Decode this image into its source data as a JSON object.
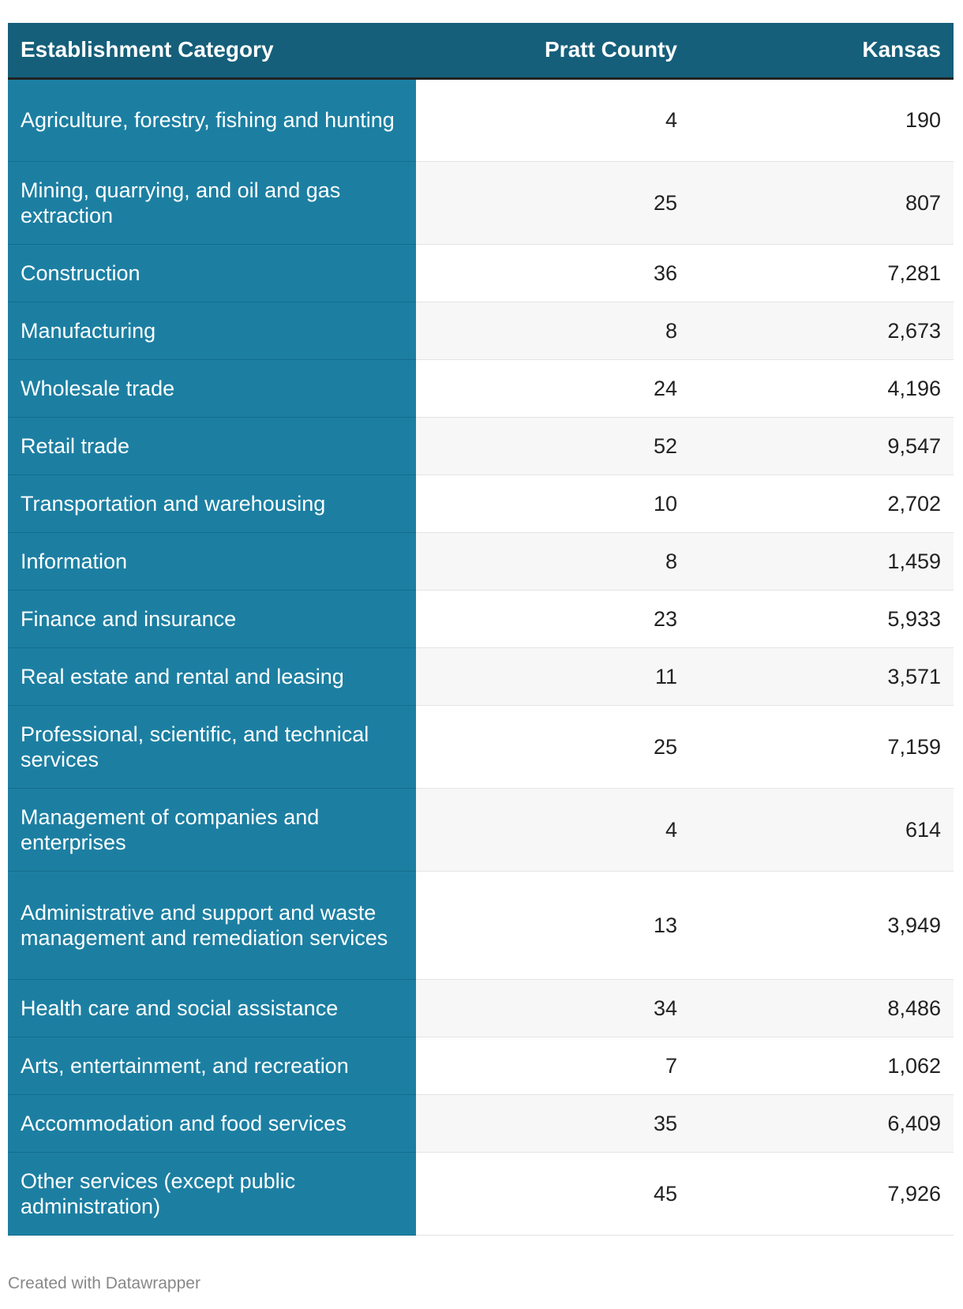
{
  "colors": {
    "header_bg": "#155f7a",
    "category_bg": "#1c7fa2",
    "header_text": "#ffffff",
    "body_text": "#222222"
  },
  "footer": "Created with Datawrapper",
  "chart_data": {
    "type": "table",
    "columns": [
      "Establishment Category",
      "Pratt County",
      "Kansas"
    ],
    "rows": [
      {
        "category": "Agriculture, forestry, fishing and hunting",
        "pratt": "4",
        "kansas": "190"
      },
      {
        "category": "Mining, quarrying, and oil and gas extraction",
        "pratt": "25",
        "kansas": "807"
      },
      {
        "category": "Construction",
        "pratt": "36",
        "kansas": "7,281"
      },
      {
        "category": "Manufacturing",
        "pratt": "8",
        "kansas": "2,673"
      },
      {
        "category": "Wholesale trade",
        "pratt": "24",
        "kansas": "4,196"
      },
      {
        "category": "Retail trade",
        "pratt": "52",
        "kansas": "9,547"
      },
      {
        "category": "Transportation and warehousing",
        "pratt": "10",
        "kansas": "2,702"
      },
      {
        "category": "Information",
        "pratt": "8",
        "kansas": "1,459"
      },
      {
        "category": "Finance and insurance",
        "pratt": "23",
        "kansas": "5,933"
      },
      {
        "category": "Real estate and rental and leasing",
        "pratt": "11",
        "kansas": "3,571"
      },
      {
        "category": "Professional, scientific, and technical services",
        "pratt": "25",
        "kansas": "7,159"
      },
      {
        "category": "Management of companies and enterprises",
        "pratt": "4",
        "kansas": "614"
      },
      {
        "category": "Administrative and support and waste management and remediation services",
        "pratt": "13",
        "kansas": "3,949"
      },
      {
        "category": "Health care and social assistance",
        "pratt": "34",
        "kansas": "8,486"
      },
      {
        "category": "Arts, entertainment, and recreation",
        "pratt": "7",
        "kansas": "1,062"
      },
      {
        "category": "Accommodation and food services",
        "pratt": "35",
        "kansas": "6,409"
      },
      {
        "category": "Other services (except public administration)",
        "pratt": "45",
        "kansas": "7,926"
      }
    ]
  }
}
